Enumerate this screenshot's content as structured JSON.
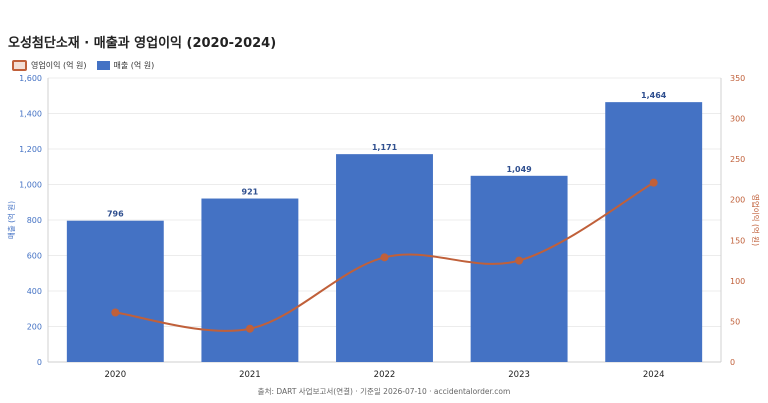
{
  "chart_data": {
    "type": "bar",
    "title": "오성첨단소재 · 매출과 영업이익 (2020-2024)",
    "categories": [
      "2020",
      "2021",
      "2022",
      "2023",
      "2024"
    ],
    "series": [
      {
        "name": "매출 (억 원)",
        "type": "bar",
        "axis": "left",
        "color": "#4472c4",
        "values": [
          796,
          921,
          1171,
          1049,
          1464
        ],
        "labels": [
          "796",
          "921",
          "1,171",
          "1,049",
          "1,464"
        ]
      },
      {
        "name": "영업이익 (억 원)",
        "type": "line",
        "axis": "right",
        "color": "#c0603a",
        "values": [
          61,
          41,
          129,
          125,
          221
        ]
      }
    ],
    "ylabel": "매출 (억 원)",
    "y2label": "영업이익 (억 원)",
    "ylim": [
      0,
      1600
    ],
    "y2lim": [
      0,
      350
    ],
    "yticks": [
      0,
      200,
      400,
      600,
      800,
      1000,
      1200,
      1400,
      1600
    ],
    "ytick_labels": [
      "0",
      "200",
      "400",
      "600",
      "800",
      "1,000",
      "1,200",
      "1,400",
      "1,600"
    ],
    "y2ticks": [
      0,
      50,
      100,
      150,
      200,
      250,
      300,
      350
    ],
    "y2tick_labels": [
      "0",
      "50",
      "100",
      "150",
      "200",
      "250",
      "300",
      "350"
    ],
    "grid": true,
    "legend_position": "top-left"
  },
  "source": "출처: DART 사업보고서(연결) · 기준일 2026-07-10 · accidentalorder.com"
}
